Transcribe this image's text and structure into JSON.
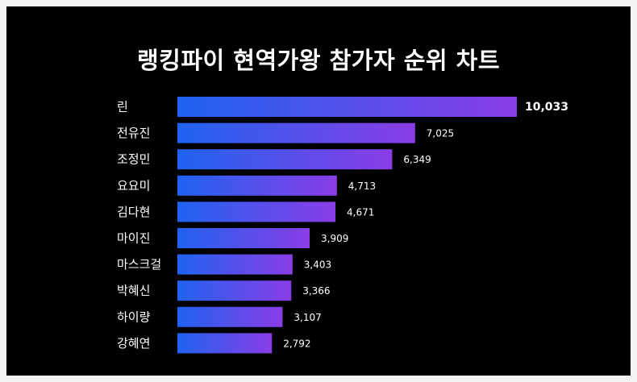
{
  "title": "랭킹파이 현역가왕 참가자 순위 차트",
  "colors": {
    "background": "#000000",
    "bar_start": "#1f63f0",
    "bar_end": "#8a3de6",
    "text": "#ffffff"
  },
  "chart_data": {
    "type": "bar",
    "orientation": "horizontal",
    "title": "랭킹파이 현역가왕 참가자 순위 차트",
    "categories": [
      "린",
      "전유진",
      "조정민",
      "요요미",
      "김다현",
      "마이진",
      "마스크걸",
      "박혜신",
      "하이량",
      "강혜연"
    ],
    "values": [
      10033,
      7025,
      6349,
      4713,
      4671,
      3909,
      3403,
      3366,
      3107,
      2792
    ],
    "value_labels": [
      "10,033",
      "7,025",
      "6,349",
      "4,713",
      "4,671",
      "3,909",
      "3,403",
      "3,366",
      "3,107",
      "2,792"
    ],
    "xlabel": "",
    "ylabel": "",
    "grid": false,
    "legend": "none"
  }
}
